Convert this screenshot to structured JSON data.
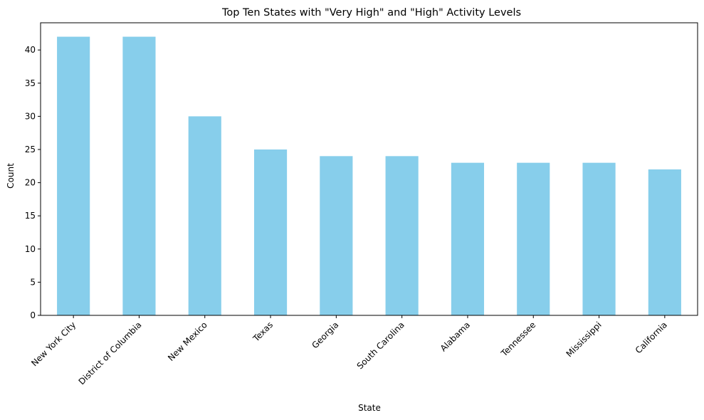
{
  "chart_data": {
    "type": "bar",
    "title": "Top Ten States with \"Very High\" and \"High\" Activity Levels",
    "xlabel": "State",
    "ylabel": "Count",
    "categories": [
      "New York City",
      "District of Columbia",
      "New Mexico",
      "Texas",
      "Georgia",
      "South Carolina",
      "Alabama",
      "Tennessee",
      "Mississippi",
      "California"
    ],
    "values": [
      42,
      42,
      30,
      25,
      24,
      24,
      23,
      23,
      23,
      22
    ],
    "ylim": [
      0,
      44.1
    ],
    "yticks": [
      0,
      5,
      10,
      15,
      20,
      25,
      30,
      35,
      40
    ],
    "bar_color": "#87CEEB",
    "grid": false,
    "legend": "none"
  }
}
